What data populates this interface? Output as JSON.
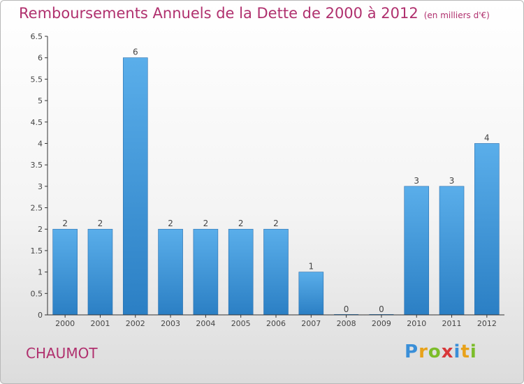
{
  "header": {
    "title": "Remboursements Annuels de la Dette de 2000 à 2012",
    "unit": "(en milliers d'€)"
  },
  "footer": {
    "commune": "CHAUMOT",
    "brand": "Proxiti"
  },
  "colors": {
    "title": "#b0306e",
    "bar_top": "#5aaeea",
    "bar_bottom": "#2b7fc4",
    "axis": "#333333"
  },
  "chart_data": {
    "type": "bar",
    "title": "Remboursements Annuels de la Dette de 2000 à 2012",
    "xlabel": "",
    "ylabel": "",
    "categories": [
      "2000",
      "2001",
      "2002",
      "2003",
      "2004",
      "2005",
      "2006",
      "2007",
      "2008",
      "2009",
      "2010",
      "2011",
      "2012"
    ],
    "values": [
      2,
      2,
      6,
      2,
      2,
      2,
      2,
      1,
      0,
      0,
      3,
      3,
      4
    ],
    "data_labels": [
      "2",
      "2",
      "6",
      "2",
      "2",
      "2",
      "2",
      "1",
      "0",
      "0",
      "3",
      "3",
      "4"
    ],
    "ylim": [
      0,
      6.5
    ],
    "yticks": [
      0,
      0.5,
      1,
      1.5,
      2,
      2.5,
      3,
      3.5,
      4,
      4.5,
      5,
      5.5,
      6,
      6.5
    ],
    "ytick_labels": [
      "0",
      "0.5",
      "1",
      "1.5",
      "2",
      "2.5",
      "3",
      "3.5",
      "4",
      "4.5",
      "5",
      "5.5",
      "6",
      "6.5"
    ],
    "grid": false,
    "legend": "none"
  }
}
